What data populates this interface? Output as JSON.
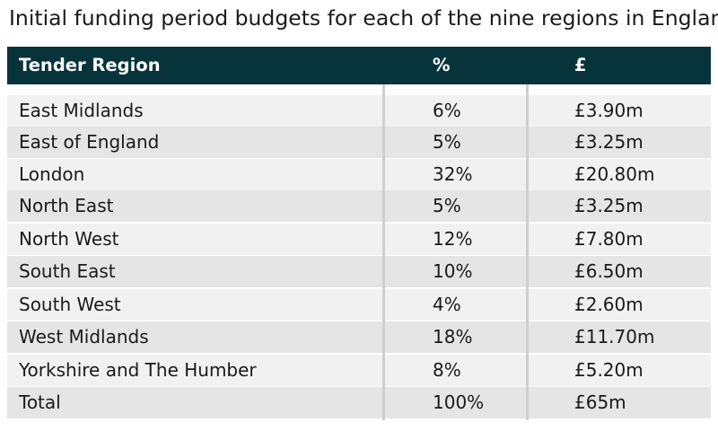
{
  "title": "Initial funding period budgets for each of the nine regions in England",
  "table": {
    "headers": [
      "Tender Region",
      "%",
      "£"
    ],
    "rows": [
      [
        "East Midlands",
        "6%",
        "£3.90m"
      ],
      [
        "East of England",
        "5%",
        "£3.25m"
      ],
      [
        "London",
        "32%",
        "£20.80m"
      ],
      [
        "North East",
        "5%",
        "£3.25m"
      ],
      [
        "North West",
        "12%",
        "£7.80m"
      ],
      [
        "South East",
        "10%",
        "£6.50m"
      ],
      [
        "South West",
        "4%",
        "£2.60m"
      ],
      [
        "West Midlands",
        "18%",
        "£11.70m"
      ],
      [
        "Yorkshire and The Humber",
        "8%",
        "£5.20m"
      ],
      [
        "Total",
        "100%",
        "£65m"
      ]
    ]
  },
  "colors": {
    "header_bg": "#06343a",
    "header_text": "#ffffff",
    "row_light": "#f1f1f1",
    "row_dark": "#e5e5e5"
  }
}
